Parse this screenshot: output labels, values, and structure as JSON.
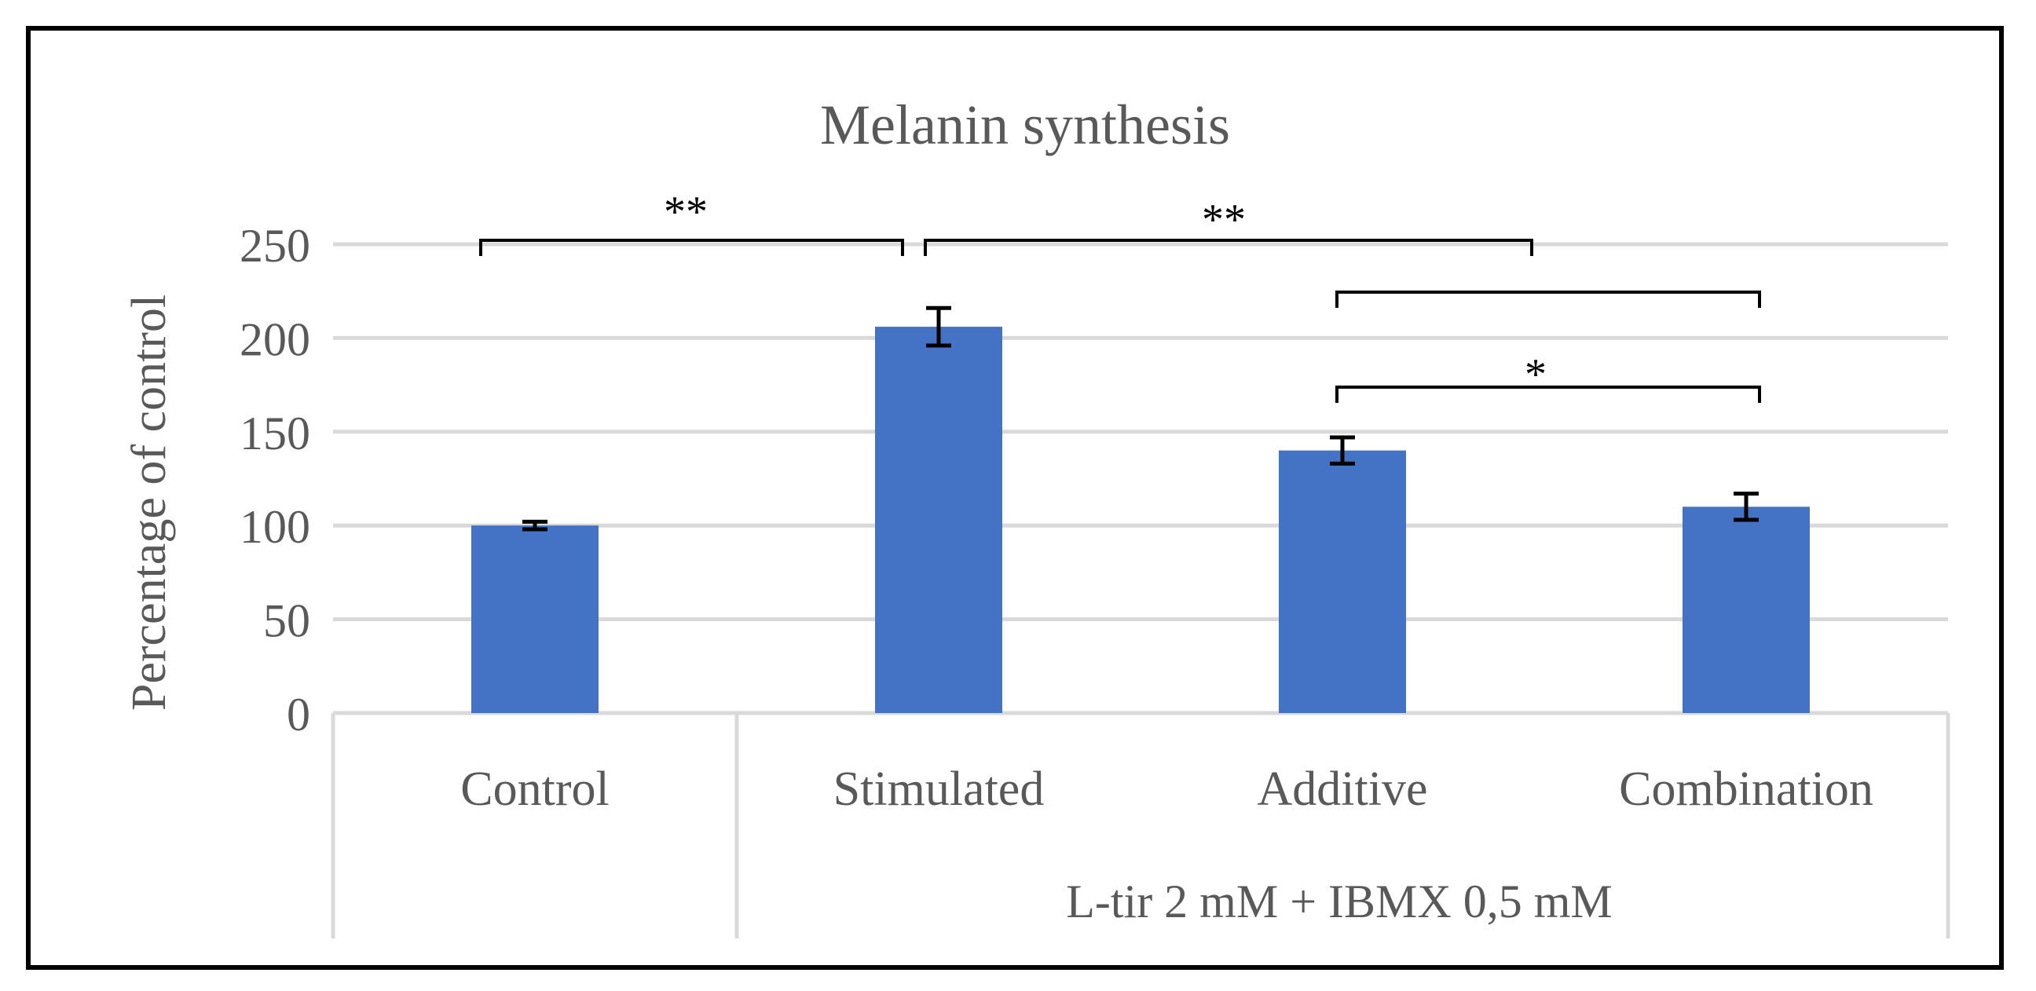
{
  "chart_data": {
    "type": "bar",
    "title": "Melanin synthesis",
    "ylabel": "Percentage of control",
    "xlabel": "",
    "ylim": [
      0,
      250
    ],
    "yticks": [
      0,
      50,
      100,
      150,
      200,
      250
    ],
    "grid": true,
    "categories": [
      "Control",
      "Stimulated",
      "Additive",
      "Combination"
    ],
    "values": [
      100,
      206,
      140,
      110
    ],
    "errors": [
      2,
      10,
      7,
      7
    ],
    "bar_color": "#4472C4",
    "group_label": "L-tir 2 mM + IBMX 0,5 mM",
    "group_members": [
      "Stimulated",
      "Additive",
      "Combination"
    ],
    "significance": [
      {
        "from": "Control",
        "to": "Stimulated",
        "label": "**"
      },
      {
        "from": "Stimulated",
        "to": "Additive",
        "label": "**"
      },
      {
        "from": "Additive",
        "to": "Combination",
        "label": ""
      },
      {
        "from": "Additive",
        "to": "Combination",
        "label": "*"
      }
    ]
  }
}
